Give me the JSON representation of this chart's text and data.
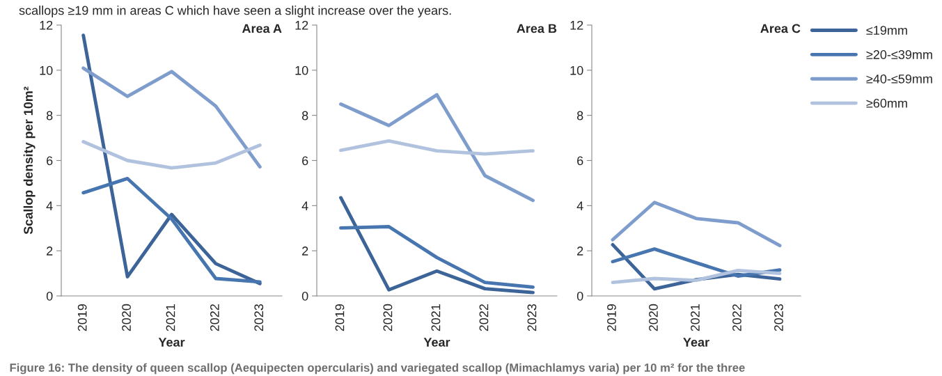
{
  "chart_data": [
    {
      "type": "line",
      "title": "Area A",
      "xlabel": "Year",
      "ylabel": "Scallop density per 10m²",
      "categories": [
        "2019",
        "2020",
        "2021",
        "2022",
        "2023"
      ],
      "ylim": [
        0,
        12
      ],
      "yticks": [
        0,
        2,
        4,
        6,
        8,
        10,
        12
      ],
      "grid": false,
      "annotations": [
        "scallops ≥19 mm in areas C which have seen a slight increase over the years.",
        "Figure 16: The density of queen scallop (Aequipecten opercularis) and variegated scallop (Mimachlamys varia) per 10 m² for the three"
      ],
      "series": [
        {
          "color": "#3d6498",
          "values": [
            11.55,
            0.85,
            3.61,
            1.43,
            0.55
          ]
        },
        {
          "color": "#4675b0",
          "values": [
            4.57,
            5.2,
            3.41,
            0.77,
            0.62
          ]
        },
        {
          "color": "#7e9ccc",
          "values": [
            10.09,
            8.84,
            9.94,
            8.41,
            5.72
          ]
        },
        {
          "color": "#b0c2de",
          "values": [
            6.83,
            6.0,
            5.67,
            5.89,
            6.68
          ]
        }
      ]
    },
    {
      "type": "line",
      "title": "Area B",
      "xlabel": "Year",
      "categories": [
        "2019",
        "2020",
        "2021",
        "2022",
        "2023"
      ],
      "ylim": [
        0,
        12
      ],
      "yticks": [
        0,
        2,
        4,
        6,
        8,
        10,
        12
      ],
      "grid": false,
      "series": [
        {
          "color": "#3d6498",
          "values": [
            4.35,
            0.27,
            1.1,
            0.32,
            0.15
          ]
        },
        {
          "color": "#4675b0",
          "values": [
            3.01,
            3.07,
            1.7,
            0.6,
            0.39
          ]
        },
        {
          "color": "#7e9ccc",
          "values": [
            8.5,
            7.55,
            8.91,
            5.33,
            4.23
          ]
        },
        {
          "color": "#b0c2de",
          "values": [
            6.45,
            6.87,
            6.43,
            6.29,
            6.43
          ]
        }
      ]
    },
    {
      "type": "line",
      "title": "Area C",
      "xlabel": "Year",
      "categories": [
        "2019",
        "2020",
        "2021",
        "2022",
        "2023"
      ],
      "ylim": [
        0,
        12
      ],
      "yticks": [
        0,
        2,
        4,
        6,
        8,
        10,
        12
      ],
      "legend": "top right",
      "grid": false,
      "series": [
        {
          "name": "≤19mm",
          "color": "#3d6498",
          "values": [
            2.27,
            0.31,
            0.72,
            0.95,
            0.75
          ]
        },
        {
          "name": "≥20-≤39mm",
          "color": "#4675b0",
          "values": [
            1.52,
            2.08,
            1.47,
            0.88,
            1.15
          ]
        },
        {
          "name": "≥40-≤59mm",
          "color": "#7e9ccc",
          "values": [
            2.49,
            4.14,
            3.43,
            3.24,
            2.23
          ]
        },
        {
          "name": "≥60mm",
          "color": "#b0c2de",
          "values": [
            0.6,
            0.77,
            0.69,
            1.13,
            1.0
          ]
        }
      ]
    }
  ]
}
